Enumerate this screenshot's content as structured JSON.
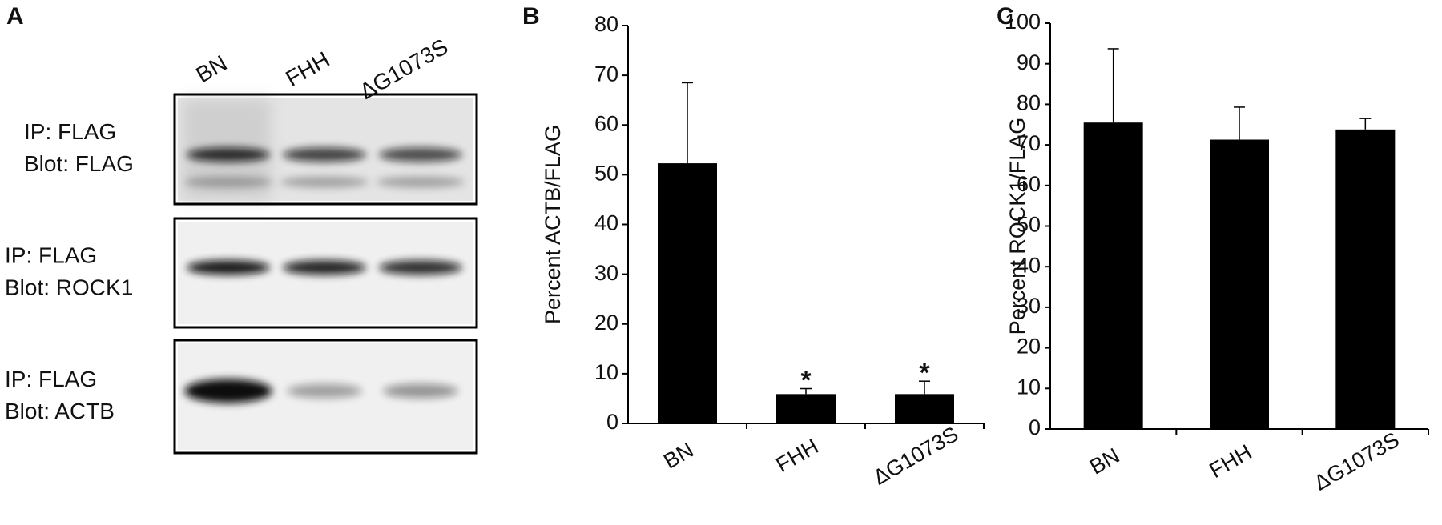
{
  "blot": {
    "panel_label": "A",
    "lanes": [
      "BN",
      "FHH",
      "ΔG1073S"
    ],
    "rows": [
      [
        "IP: FLAG",
        "Blot: FLAG"
      ],
      [
        "IP: FLAG",
        "Blot: ROCK1"
      ],
      [
        "IP: FLAG",
        "Blot: ACTB"
      ]
    ]
  },
  "chart_data": [
    {
      "type": "bar",
      "panel_label": "B",
      "y_label": "Percent ACTB/FLAG",
      "categories": [
        "BN",
        "FHH",
        "ΔG1073S"
      ],
      "values": [
        52.3,
        5.9,
        5.9
      ],
      "errors": [
        16.2,
        1.1,
        2.6
      ],
      "significance": [
        null,
        "*",
        "*"
      ],
      "color": "#000000",
      "ylim": [
        0,
        80
      ],
      "yticks": [
        0,
        10,
        20,
        30,
        40,
        50,
        60,
        70,
        80
      ]
    },
    {
      "type": "bar",
      "panel_label": "C",
      "y_label": "Percent ROCK1/FLAG",
      "categories": [
        "BN",
        "FHH",
        "ΔG1073S"
      ],
      "values": [
        75.5,
        71.3,
        73.8
      ],
      "errors": [
        18.2,
        8.0,
        2.7
      ],
      "color": "#000000",
      "ylim": [
        0,
        100
      ],
      "yticks": [
        0,
        10,
        20,
        30,
        40,
        50,
        60,
        70,
        80,
        90,
        100
      ]
    }
  ]
}
